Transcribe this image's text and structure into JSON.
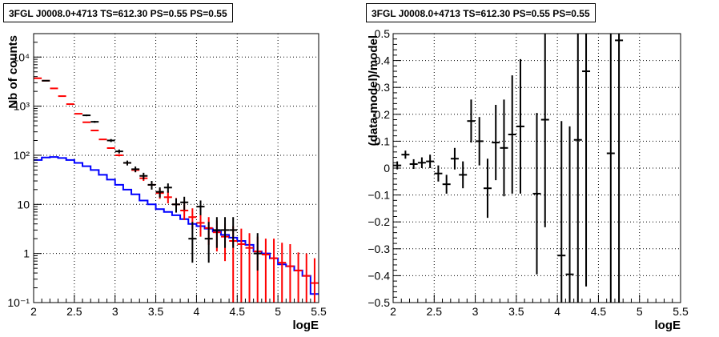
{
  "chart_data": [
    {
      "type": "histogram",
      "title": "3FGL J0008.0+4713 TS=612.30 PS=0.55 PS=0.55",
      "xlabel": "logE",
      "ylabel": "Nb of counts",
      "log_y": true,
      "grid": true,
      "xlim": [
        2,
        5.5
      ],
      "ylim": [
        0.1,
        30000
      ],
      "x_ticks": [
        "2",
        "2.5",
        "3",
        "3.5",
        "4",
        "4.5",
        "5",
        "5.5"
      ],
      "y_ticks": [
        "10⁻¹",
        "1",
        "10",
        "10²",
        "10³",
        "10⁴"
      ],
      "series": [
        {
          "color": "#ff0000",
          "style": "model-with-errors",
          "x": [
            2.05,
            2.15,
            2.25,
            2.35,
            2.45,
            2.55,
            2.65,
            2.75,
            2.85,
            2.95,
            3.05,
            3.15,
            3.25,
            3.35,
            3.45,
            3.55,
            3.65,
            3.75,
            3.85,
            3.95,
            4.05,
            4.15,
            4.25,
            4.35,
            4.45,
            4.55,
            4.65,
            4.75,
            4.85,
            4.95,
            5.05,
            5.15,
            5.25,
            5.35,
            5.45
          ],
          "y": [
            3700,
            3300,
            2300,
            1600,
            1100,
            700,
            470,
            320,
            210,
            140,
            100,
            70,
            50,
            34,
            25,
            17,
            14,
            10,
            7.5,
            5.5,
            4.2,
            3.3,
            2.7,
            2.2,
            1.8,
            1.55,
            1.3,
            1.1,
            0.95,
            0.8,
            0.65,
            0.55,
            0.45,
            0.35,
            0.25
          ],
          "err_lo": [
            0,
            0,
            0,
            0,
            0,
            0,
            0,
            0,
            0,
            0,
            5,
            4,
            4,
            4,
            4,
            4,
            3.5,
            3,
            2.7,
            2.3,
            2,
            1.8,
            1.6,
            1.5,
            1.8,
            1.55,
            1.3,
            1.1,
            0.95,
            0.8,
            0.65,
            0.55,
            0.45,
            0.35,
            0.25
          ],
          "err_hi": [
            0,
            0,
            0,
            0,
            0,
            0,
            0,
            0,
            0,
            0,
            5,
            4,
            4,
            4,
            4,
            4,
            4.5,
            3.5,
            3.2,
            2.8,
            2.2,
            2.2,
            2,
            1.9,
            1.8,
            1.65,
            1.3,
            1.1,
            1.05,
            1.2,
            1,
            1,
            0.6,
            0.65,
            0.55
          ]
        },
        {
          "color": "#000000",
          "style": "data-points",
          "x": [
            2.15,
            2.65,
            2.75,
            2.95,
            3.05,
            3.15,
            3.25,
            3.35,
            3.45,
            3.55,
            3.65,
            3.75,
            3.85,
            3.95,
            4.05,
            4.15,
            4.25,
            4.35,
            4.45,
            4.75
          ],
          "y": [
            3300,
            650,
            480,
            200,
            120,
            70,
            52,
            38,
            25,
            18,
            22,
            10,
            11,
            2,
            9,
            2,
            3,
            3,
            3,
            1
          ],
          "err_lo": [
            60,
            25,
            22,
            14,
            11,
            8,
            7,
            6,
            5,
            4.2,
            4.7,
            3.2,
            3.3,
            1.35,
            3,
            1.35,
            1.7,
            1.7,
            1.7,
            0.55
          ],
          "err_hi": [
            60,
            25,
            22,
            14,
            11,
            8,
            7,
            6,
            5,
            4.2,
            4.7,
            3.2,
            3.3,
            2.4,
            3,
            2.4,
            2.5,
            2.5,
            2.5,
            1.6
          ]
        },
        {
          "color": "#0000ff",
          "style": "step",
          "x_edges": [
            2.0,
            2.1,
            2.2,
            2.3,
            2.4,
            2.5,
            2.6,
            2.7,
            2.8,
            2.9,
            3.0,
            3.1,
            3.2,
            3.3,
            3.4,
            3.5,
            3.6,
            3.7,
            3.8,
            3.9,
            4.0,
            4.1,
            4.2,
            4.3,
            4.4,
            4.5,
            4.6,
            4.7,
            4.8,
            4.9,
            5.0,
            5.1,
            5.2,
            5.3,
            5.4,
            5.5
          ],
          "y": [
            80,
            90,
            92,
            88,
            80,
            70,
            60,
            50,
            40,
            32,
            25,
            20,
            16,
            12,
            10,
            8,
            7,
            6,
            5,
            4,
            3.6,
            3.2,
            2.8,
            2.4,
            2.1,
            1.8,
            1.5,
            1.1,
            1.0,
            0.8,
            0.6,
            0.55,
            0.45,
            0.35,
            0.15
          ]
        }
      ]
    },
    {
      "type": "scatter",
      "title": "3FGL J0008.0+4713 TS=612.30 PS=0.55 PS=0.55",
      "xlabel": "logE",
      "ylabel": "(data-model)/model",
      "grid": true,
      "xlim": [
        2,
        5.5
      ],
      "ylim": [
        -0.5,
        0.5
      ],
      "x_ticks": [
        "2",
        "2.5",
        "3",
        "3.5",
        "4",
        "4.5",
        "5",
        "5.5"
      ],
      "y_ticks": [
        "−0.5",
        "−0.4",
        "−0.3",
        "−0.2",
        "−0.1",
        "0",
        "0.1",
        "0.2",
        "0.3",
        "0.4",
        "0.5"
      ],
      "series": [
        {
          "color": "#000000",
          "x": [
            2.05,
            2.15,
            2.25,
            2.35,
            2.45,
            2.55,
            2.65,
            2.75,
            2.85,
            2.95,
            3.05,
            3.15,
            3.25,
            3.35,
            3.45,
            3.55,
            3.75,
            3.85,
            4.05,
            4.15,
            4.25,
            4.35,
            4.65,
            4.75
          ],
          "y": [
            0.01,
            0.05,
            0.015,
            0.02,
            0.025,
            -0.02,
            -0.06,
            0.035,
            -0.025,
            0.175,
            0.1,
            -0.075,
            0.095,
            0.075,
            0.125,
            0.155,
            -0.095,
            0.18,
            -0.325,
            -0.395,
            0.105,
            0.36,
            0.055,
            0.475
          ],
          "err": [
            0.015,
            0.015,
            0.018,
            0.02,
            0.025,
            0.03,
            0.035,
            0.04,
            0.05,
            0.08,
            0.09,
            0.11,
            0.14,
            0.18,
            0.22,
            0.25,
            0.3,
            0.4,
            0.5,
            0.55,
            0.65,
            0.8,
            0.9,
            1.0
          ]
        }
      ]
    }
  ]
}
